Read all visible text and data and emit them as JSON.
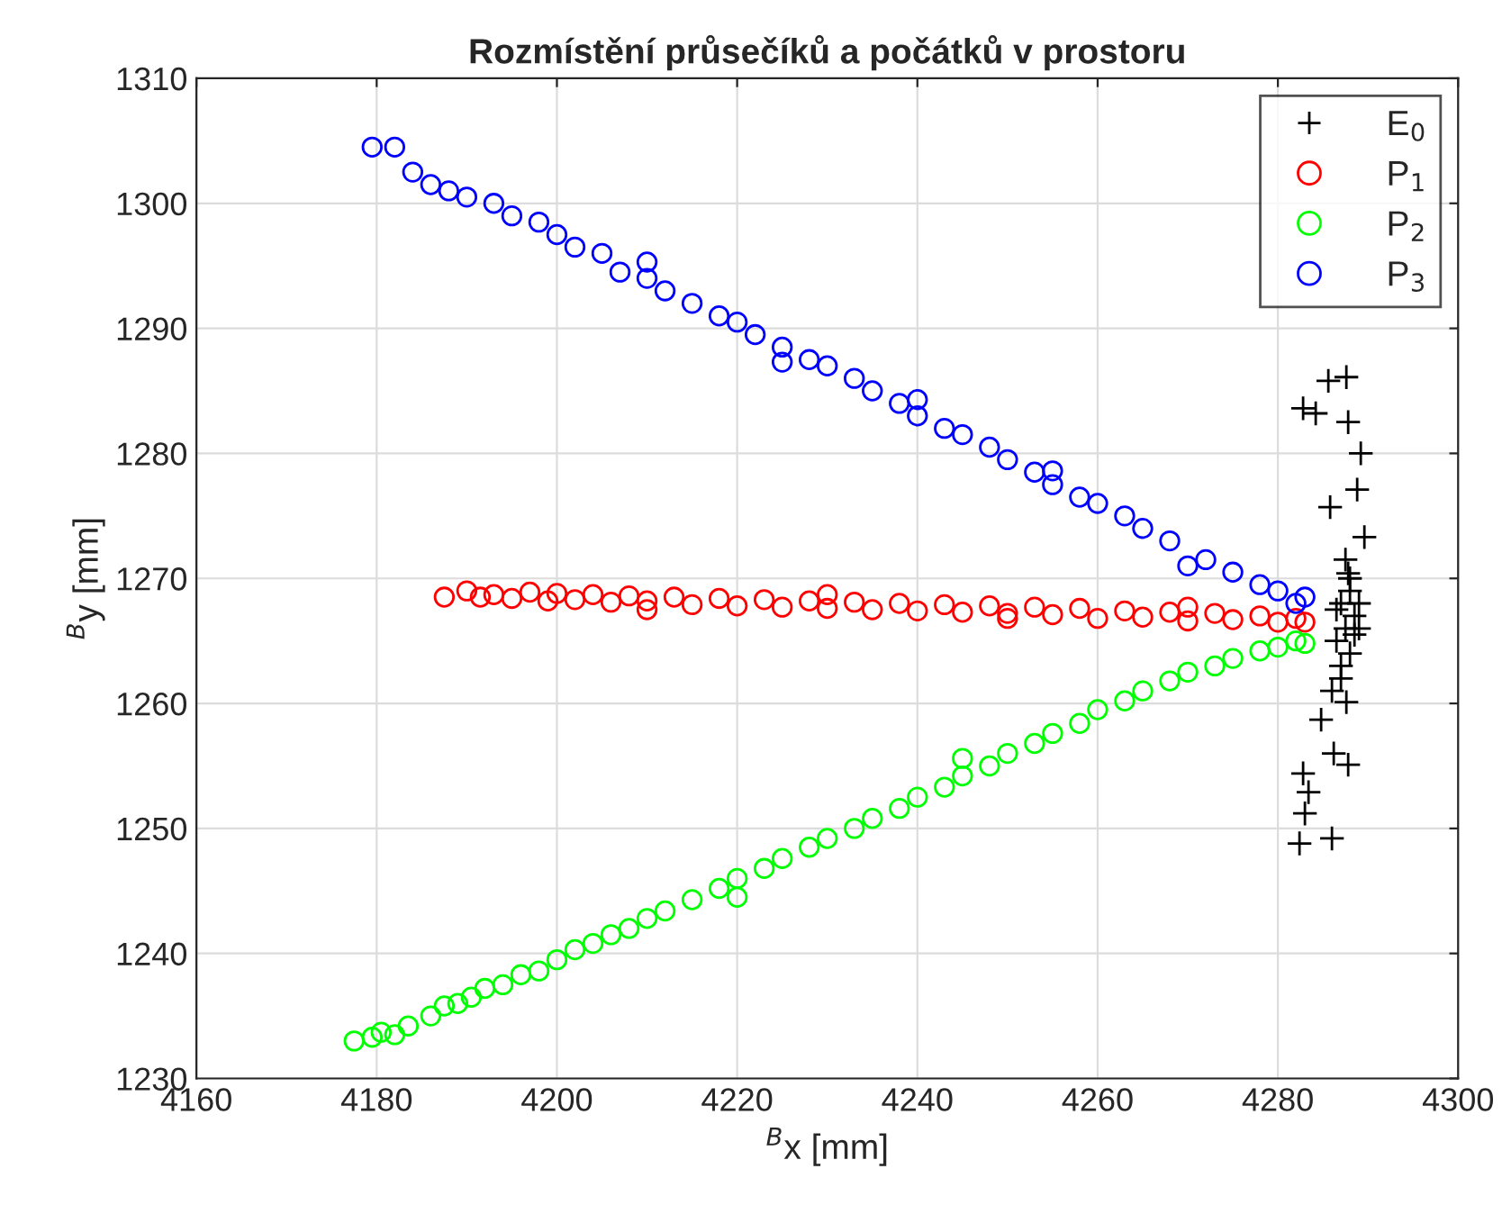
{
  "chart_data": {
    "type": "scatter",
    "title": "Rozmístění průsečíků a počátků v prostoru",
    "xlabel": "$^{B}$x [mm]",
    "ylabel": "$^{B}$y [mm]",
    "xlim": [
      4160,
      4300
    ],
    "xticks": [
      4160,
      4180,
      4200,
      4220,
      4240,
      4260,
      4280,
      4300
    ],
    "ylim": [
      1230,
      1310
    ],
    "yticks": [
      1230,
      1240,
      1250,
      1260,
      1270,
      1280,
      1290,
      1300,
      1310
    ],
    "grid": true,
    "legend": "top right",
    "series": [
      {
        "name": "E$_{0}$",
        "color": "#000000",
        "marker": "cross",
        "x": [
          4282.4,
          4286,
          4283,
          4283.4,
          4282.8,
          4286.2,
          4287.8,
          4284.8,
          4287.6,
          4287.8,
          4289.6,
          4285.8,
          4288.8,
          4289.2,
          4287.8,
          4282.8,
          4284.2,
          4285.6,
          4287.6,
          4287,
          4288,
          4287.5,
          4288.5,
          4287,
          4288,
          4286.5,
          4289,
          4287,
          4288,
          4286,
          4289,
          4286.5,
          4288.5,
          4287.5
        ],
        "values": [
          1248.8,
          1249.2,
          1251.2,
          1252.9,
          1254.4,
          1256,
          1255.1,
          1258.7,
          1260.1,
          1270.4,
          1273.3,
          1275.7,
          1277.1,
          1280,
          1282.5,
          1283.6,
          1283.2,
          1285.8,
          1286.1,
          1262,
          1264,
          1266,
          1267,
          1268,
          1269,
          1265,
          1266,
          1263,
          1270,
          1261,
          1268,
          1267.5,
          1265.5,
          1271.5
        ]
      },
      {
        "name": "P$_{1}$",
        "color": "#ff0000",
        "marker": "circle",
        "x": [
          4187.5,
          4190,
          4191.5,
          4193,
          4195,
          4197,
          4199,
          4200,
          4202,
          4204,
          4206,
          4208,
          4210,
          4213,
          4215,
          4218,
          4220,
          4223,
          4225,
          4228,
          4230,
          4233,
          4235,
          4238,
          4240,
          4243,
          4245,
          4248,
          4250,
          4253,
          4255,
          4258,
          4260,
          4263,
          4265,
          4268,
          4270,
          4273,
          4275,
          4278,
          4280,
          4282,
          4283,
          4210,
          4230,
          4250,
          4270
        ],
        "values": [
          1268.5,
          1269,
          1268.5,
          1268.7,
          1268.4,
          1268.9,
          1268.2,
          1268.8,
          1268.3,
          1268.7,
          1268.1,
          1268.6,
          1268.2,
          1268.5,
          1267.9,
          1268.4,
          1267.8,
          1268.3,
          1267.7,
          1268.2,
          1267.6,
          1268.1,
          1267.5,
          1268,
          1267.4,
          1267.9,
          1267.3,
          1267.8,
          1267.2,
          1267.7,
          1267.1,
          1267.6,
          1266.8,
          1267.4,
          1266.9,
          1267.3,
          1266.6,
          1267.2,
          1266.7,
          1267,
          1266.5,
          1266.8,
          1266.5,
          1267.5,
          1268.7,
          1266.8,
          1267.7
        ]
      },
      {
        "name": "P$_{2}$",
        "color": "#00ff00",
        "marker": "circle",
        "x": [
          4177.5,
          4179.5,
          4180.5,
          4182,
          4183.5,
          4186,
          4187.5,
          4189,
          4190.5,
          4192,
          4194,
          4196,
          4198,
          4200,
          4202,
          4204,
          4206,
          4208,
          4210,
          4212,
          4215,
          4218,
          4220,
          4223,
          4225,
          4228,
          4230,
          4233,
          4235,
          4238,
          4240,
          4243,
          4245,
          4248,
          4250,
          4253,
          4255,
          4258,
          4260,
          4263,
          4265,
          4268,
          4270,
          4273,
          4275,
          4278,
          4280,
          4282,
          4283,
          4220,
          4245
        ],
        "values": [
          1233,
          1233.3,
          1233.7,
          1233.5,
          1234.2,
          1235,
          1235.8,
          1236,
          1236.5,
          1237.2,
          1237.5,
          1238.3,
          1238.6,
          1239.5,
          1240.3,
          1240.8,
          1241.5,
          1242,
          1242.8,
          1243.4,
          1244.3,
          1245.2,
          1246,
          1246.8,
          1247.6,
          1248.5,
          1249.2,
          1250,
          1250.8,
          1251.6,
          1252.5,
          1253.3,
          1254.2,
          1255,
          1256,
          1256.8,
          1257.6,
          1258.4,
          1259.5,
          1260.2,
          1261,
          1261.8,
          1262.5,
          1263,
          1263.6,
          1264.2,
          1264.5,
          1265,
          1264.8,
          1244.5,
          1255.6
        ]
      },
      {
        "name": "P$_{3}$",
        "color": "#0000ff",
        "marker": "circle",
        "x": [
          4179.5,
          4182,
          4184,
          4186,
          4188,
          4190,
          4193,
          4195,
          4198,
          4200,
          4202,
          4205,
          4207,
          4210,
          4212,
          4215,
          4218,
          4220,
          4222,
          4225,
          4228,
          4230,
          4233,
          4235,
          4238,
          4240,
          4243,
          4245,
          4248,
          4250,
          4253,
          4255,
          4258,
          4260,
          4263,
          4265,
          4268,
          4270,
          4272,
          4275,
          4278,
          4280,
          4282,
          4283,
          4210,
          4240,
          4225,
          4255
        ],
        "values": [
          1304.5,
          1304.5,
          1302.5,
          1301.5,
          1301,
          1300.5,
          1300,
          1299,
          1298.5,
          1297.5,
          1296.5,
          1296,
          1294.5,
          1294,
          1293,
          1292,
          1291,
          1290.5,
          1289.5,
          1288.5,
          1287.5,
          1287,
          1286,
          1285,
          1284,
          1283,
          1282,
          1281.5,
          1280.5,
          1279.5,
          1278.5,
          1277.5,
          1276.5,
          1276,
          1275,
          1274,
          1273,
          1271,
          1271.5,
          1270.5,
          1269.5,
          1269,
          1268,
          1268.5,
          1295.3,
          1284.3,
          1287.3,
          1278.6
        ]
      }
    ]
  }
}
